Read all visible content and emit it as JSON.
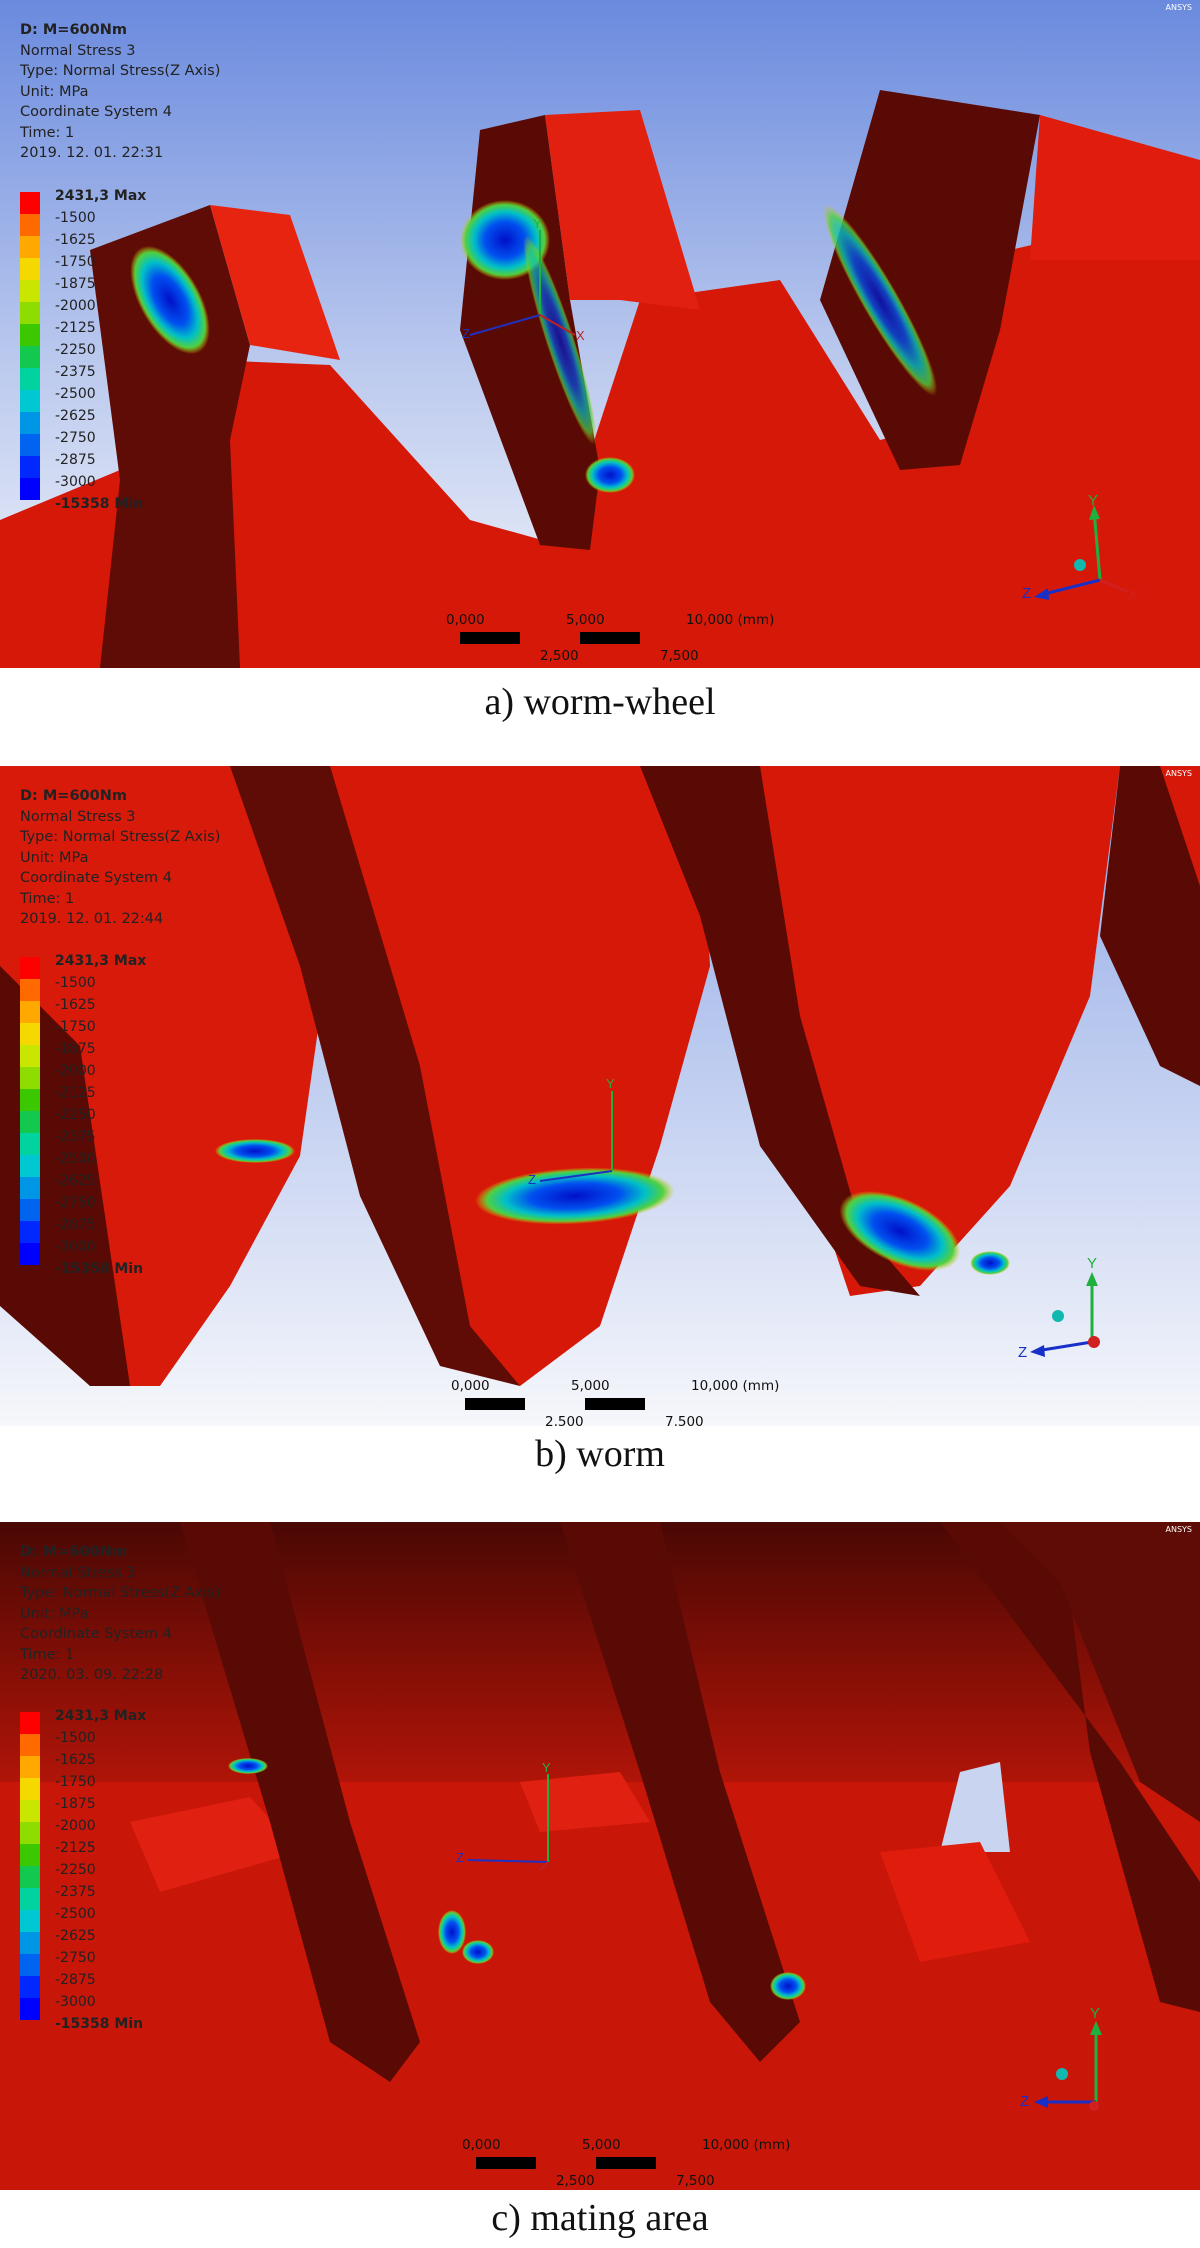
{
  "panels": [
    {
      "info": {
        "title": "D: M=600Nm",
        "lines": [
          "Normal Stress 3",
          "Type: Normal Stress(Z Axis)",
          "Unit: MPa",
          "Coordinate System 4",
          "Time: 1",
          "2019. 12. 01. 22:31"
        ]
      },
      "legend": {
        "max": "2431,3 Max",
        "values": [
          "-1500",
          "-1625",
          "-1750",
          "-1875",
          "-2000",
          "-2125",
          "-2250",
          "-2375",
          "-2500",
          "-2625",
          "-2750",
          "-2875",
          "-3000"
        ],
        "min": "-15358 Min"
      },
      "scale": {
        "labels_top": [
          "0,000",
          "5,000",
          "10,000 (mm)"
        ],
        "labels_bottom": [
          "2,500",
          "7,500"
        ]
      },
      "caption": "a) worm-wheel"
    },
    {
      "info": {
        "title": "D: M=600Nm",
        "lines": [
          "Normal Stress 3",
          "Type: Normal Stress(Z Axis)",
          "Unit: MPa",
          "Coordinate System 4",
          "Time: 1",
          "2019. 12. 01. 22:44"
        ]
      },
      "legend": {
        "max": "2431,3 Max",
        "values": [
          "-1500",
          "-1625",
          "-1750",
          "-1875",
          "-2000",
          "-2125",
          "-2250",
          "-2375",
          "-2500",
          "-2625",
          "-2750",
          "-2875",
          "-3000"
        ],
        "min": "-15358 Min"
      },
      "scale": {
        "labels_top": [
          "0,000",
          "5,000",
          "10,000 (mm)"
        ],
        "labels_bottom": [
          "2,500",
          "7,500"
        ]
      },
      "caption": "b) worm"
    },
    {
      "info": {
        "title": "D: M=600Nm",
        "lines": [
          "Normal Stress 3",
          "Type: Normal Stress(Z Axis)",
          "Unit: MPa",
          "Coordinate System 4",
          "Time: 1",
          "2020. 03. 09. 22:28"
        ]
      },
      "legend": {
        "max": "2431,3 Max",
        "values": [
          "-1500",
          "-1625",
          "-1750",
          "-1875",
          "-2000",
          "-2125",
          "-2250",
          "-2375",
          "-2500",
          "-2625",
          "-2750",
          "-2875",
          "-3000"
        ],
        "min": "-15358 Min"
      },
      "scale": {
        "labels_top": [
          "0,000",
          "5,000",
          "10,000 (mm)"
        ],
        "labels_bottom": [
          "2,500",
          "7,500"
        ]
      },
      "caption": "c) mating area"
    }
  ],
  "axis_labels": {
    "y": "Y",
    "z": "Z",
    "x": "X"
  },
  "logo_text": "ANSYS",
  "colors": {
    "legend_bands": [
      "#ff0000",
      "#ff6a00",
      "#ffa800",
      "#f5d800",
      "#c8e600",
      "#8fdc00",
      "#3cc800",
      "#12c84e",
      "#00d2a0",
      "#00c8d2",
      "#0096e6",
      "#0064f0",
      "#0028ff",
      "#0000ff"
    ],
    "part_red": "#e11a0a",
    "part_dark": "#5a0a04",
    "sky_top": "#6e90e0",
    "sky_bottom": "#f4f6fb"
  }
}
